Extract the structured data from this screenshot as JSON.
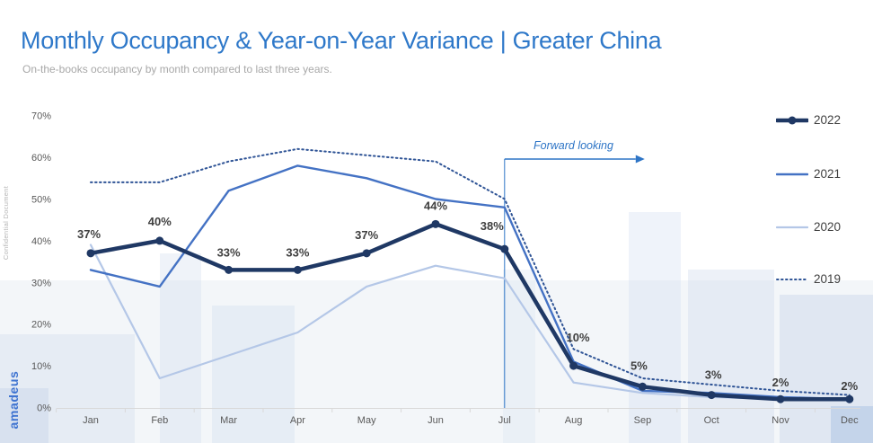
{
  "header": {
    "title": "Monthly Occupancy & Year-on-Year Variance | Greater China",
    "subtitle": "On-the-books occupancy by month compared to last three years."
  },
  "watermarks": {
    "confidential": "Confidential Document",
    "brand": "amadeus"
  },
  "annotation": {
    "forward_looking": "Forward looking"
  },
  "colors": {
    "title": "#2e78c9",
    "subtitle": "#a8a8a8",
    "axis_text": "#595959",
    "axis_line": "#d9d9d9",
    "data_label": "#404040",
    "annotation": "#2e75c6",
    "brand": "#3f74d1"
  },
  "chart_data": {
    "type": "line",
    "x": [
      "Jan",
      "Feb",
      "Mar",
      "Apr",
      "May",
      "Jun",
      "Jul",
      "Aug",
      "Sep",
      "Oct",
      "Nov",
      "Dec"
    ],
    "y_tick_labels": [
      "0%",
      "10%",
      "20%",
      "30%",
      "40%",
      "50%",
      "60%",
      "70%"
    ],
    "ylim": [
      0,
      70
    ],
    "grid": false,
    "legend_position": "right",
    "forward_looking_from": "Jul",
    "series": [
      {
        "name": "2022",
        "style": "solid-markers",
        "color": "#1f3864",
        "width": 4.5,
        "values": [
          37,
          40,
          33,
          33,
          37,
          44,
          38,
          10,
          5,
          3,
          2,
          2
        ],
        "data_labels": [
          "37%",
          "40%",
          "33%",
          "33%",
          "37%",
          "44%",
          "38%",
          "10%",
          "5%",
          "3%",
          "2%",
          "2%"
        ]
      },
      {
        "name": "2021",
        "style": "solid",
        "color": "#4472c4",
        "width": 2.4,
        "values": [
          33,
          29,
          52,
          58,
          55,
          50,
          48,
          11,
          4,
          3.5,
          2.5,
          2
        ]
      },
      {
        "name": "2020",
        "style": "solid",
        "color": "#b4c7e7",
        "width": 2.2,
        "values": [
          39,
          7,
          12.5,
          18,
          29,
          34,
          31,
          6,
          3.5,
          2.5,
          2,
          2
        ]
      },
      {
        "name": "2019",
        "style": "dotted",
        "color": "#2f5496",
        "width": 2,
        "values": [
          54,
          54,
          59,
          62,
          60.5,
          59,
          50,
          14,
          7,
          5.5,
          4,
          3
        ]
      }
    ]
  }
}
